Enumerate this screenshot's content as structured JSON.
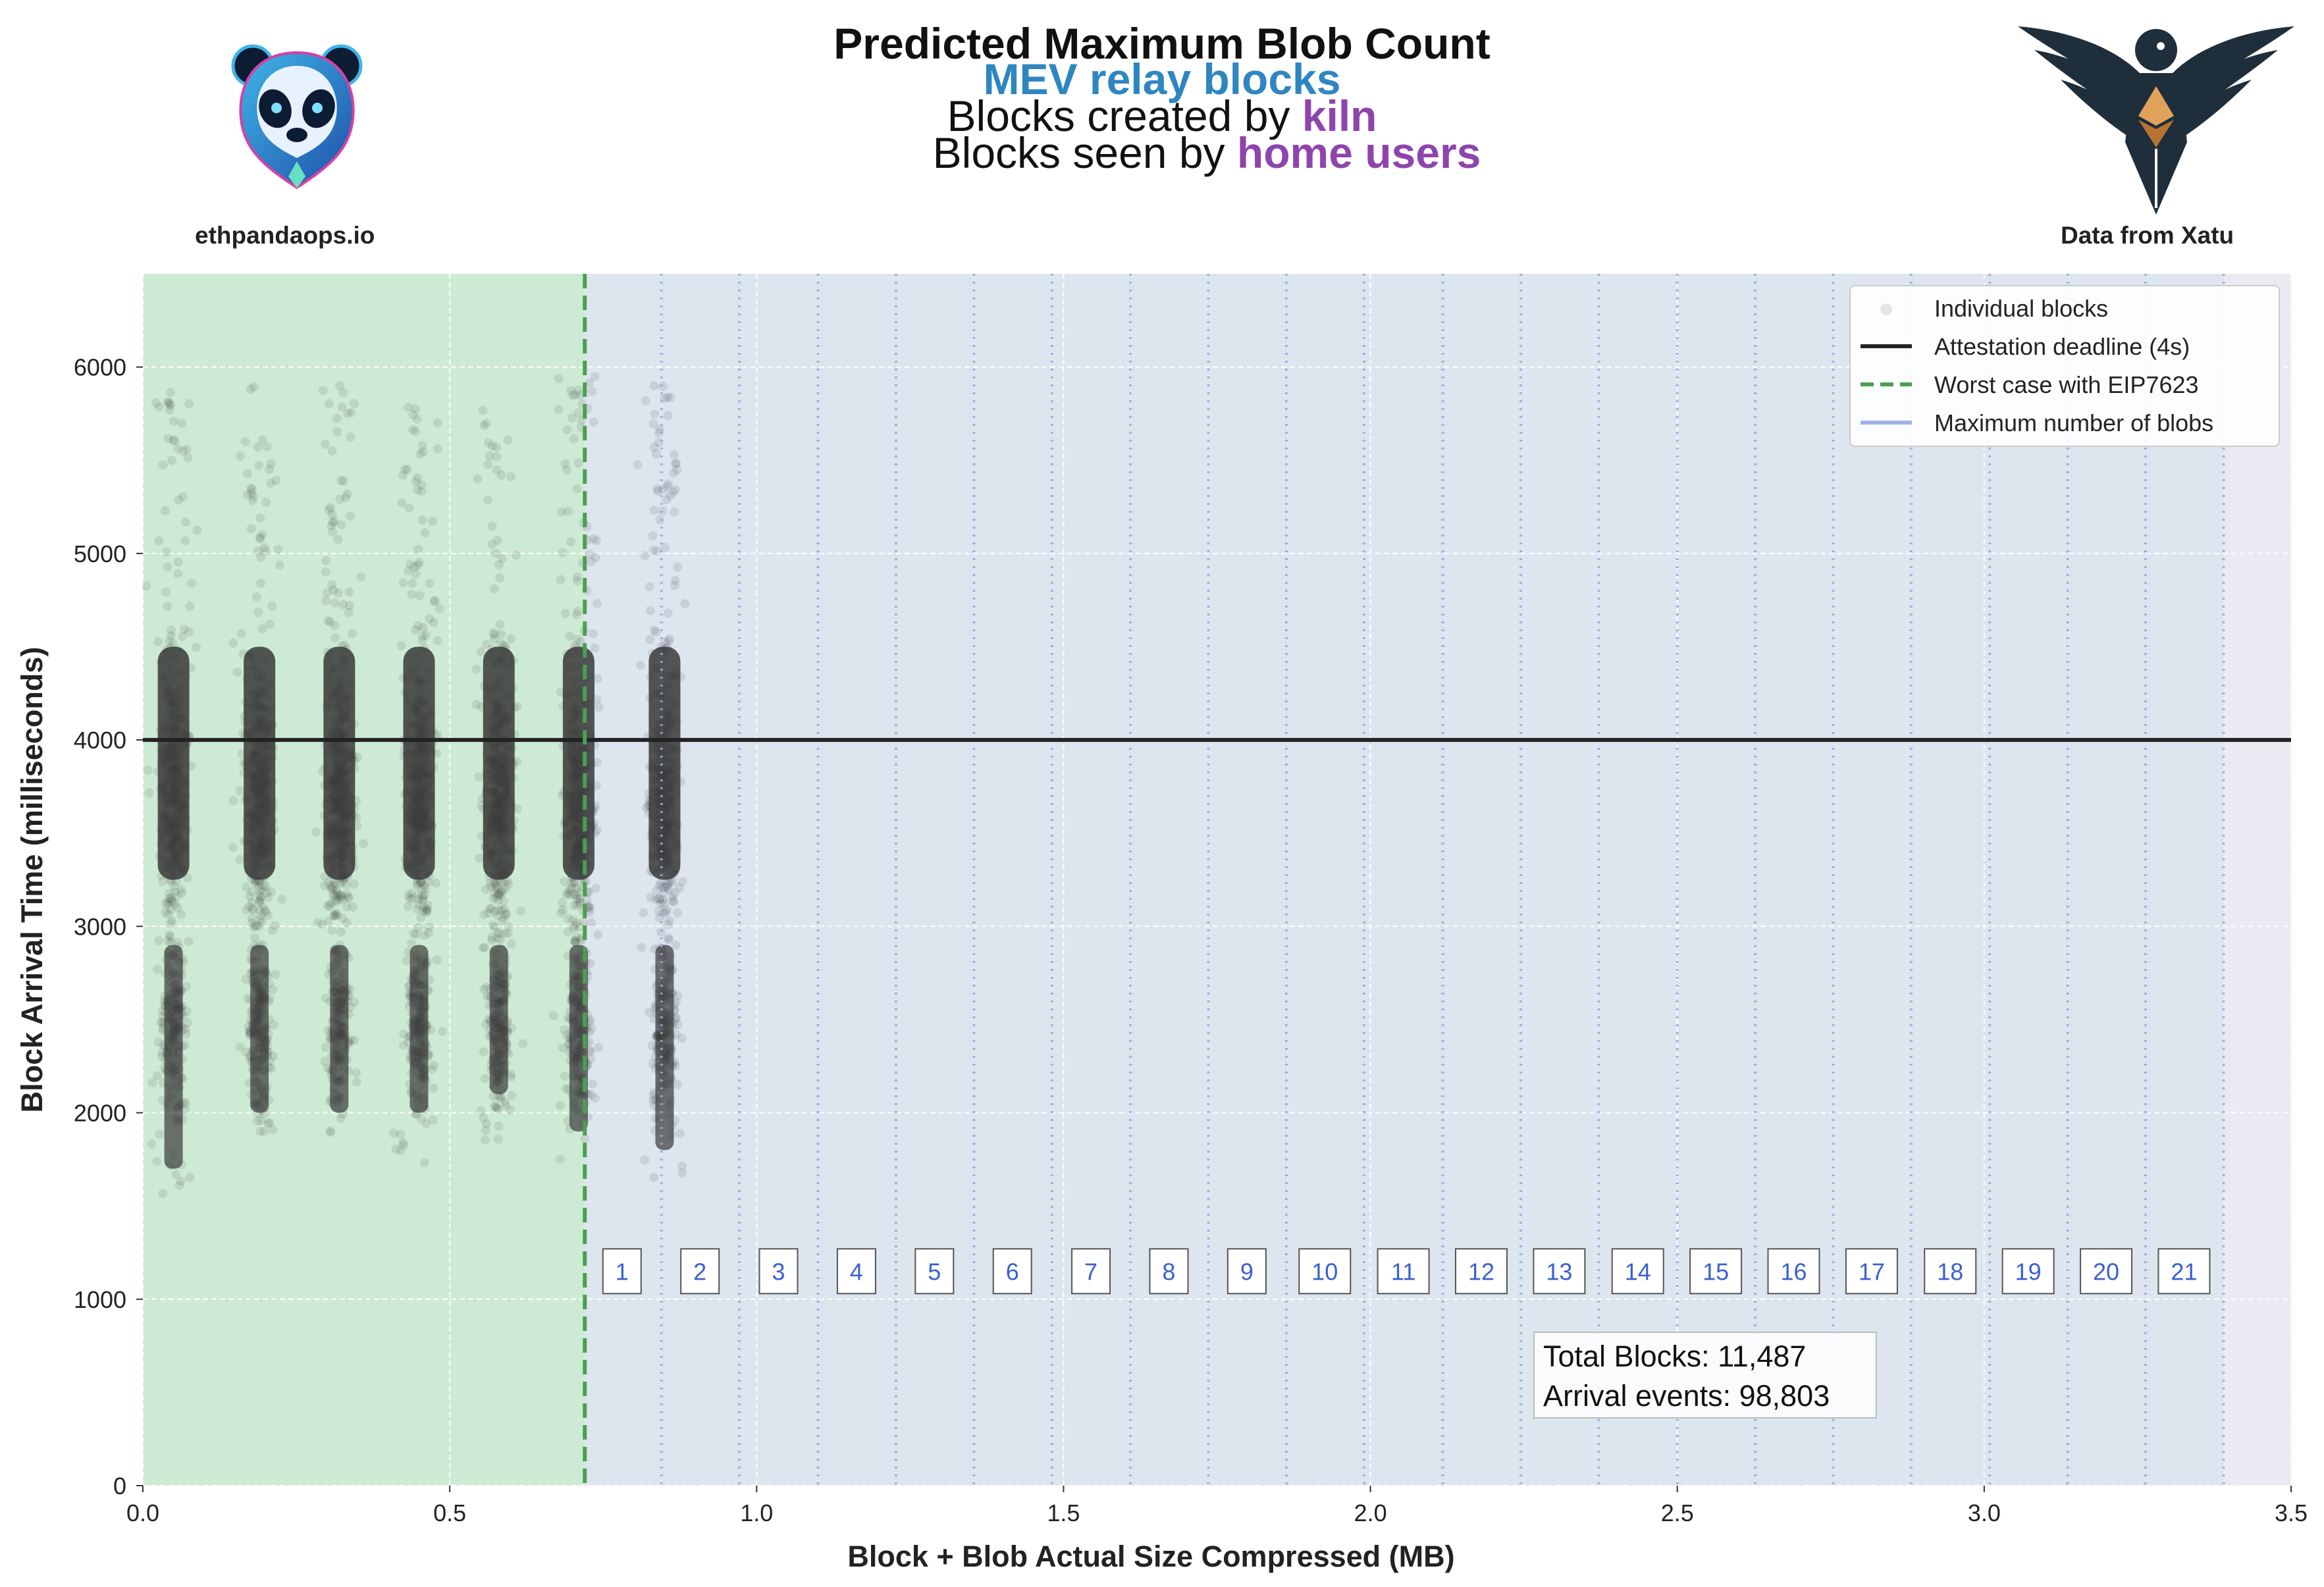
{
  "header": {
    "title": "Predicted Maximum Blob Count",
    "subtitle": "MEV relay blocks",
    "created_prefix": "Blocks created by",
    "created_by": "kiln",
    "seen_prefix": "Blocks seen by",
    "seen_by": "home users",
    "left_brand": "ethpandaops.io",
    "right_brand": "Data from Xatu"
  },
  "colors": {
    "subtitle": "#2e86c1",
    "highlight": "#8e44ad",
    "green_region": "#cdebd4",
    "blue_region": "#dde5ef",
    "plot_bg": "#eaeaf2",
    "points": "#3a3a3a",
    "deadline": "#222222",
    "eip_line": "#4aa050",
    "blob_lines": "#90a8e8",
    "blob_label": "#3b5fcf"
  },
  "icons": {
    "left_logo": "panda-logo-icon",
    "right_logo": "eagle-ethereum-logo-icon"
  },
  "chart_data": {
    "type": "scatter",
    "xlabel": "Block + Blob Actual Size Compressed (MB)",
    "ylabel": "Block Arrival Time (milliseconds)",
    "xlim": [
      0,
      3.5
    ],
    "ylim": [
      0,
      6500
    ],
    "xticks": [
      "0.0",
      "0.5",
      "1.0",
      "1.5",
      "2.0",
      "2.5",
      "3.0",
      "3.5"
    ],
    "xtick_values": [
      0,
      0.5,
      1.0,
      1.5,
      2.0,
      2.5,
      3.0,
      3.5
    ],
    "yticks": [
      "0",
      "1000",
      "2000",
      "3000",
      "4000",
      "5000",
      "6000"
    ],
    "ytick_values": [
      0,
      1000,
      2000,
      3000,
      4000,
      5000,
      6000
    ],
    "grid": true,
    "attestation_deadline_ms": 4000,
    "eip7623_worst_case_mb": 0.72,
    "blob_lines_mb": [
      0.845,
      0.972,
      1.1,
      1.227,
      1.354,
      1.481,
      1.609,
      1.736,
      1.863,
      1.99,
      2.118,
      2.245,
      2.372,
      2.5,
      2.627,
      2.754,
      2.881,
      3.009,
      3.136,
      3.263,
      3.39
    ],
    "blob_labels": [
      "1",
      "2",
      "3",
      "4",
      "5",
      "6",
      "7",
      "8",
      "9",
      "10",
      "11",
      "12",
      "13",
      "14",
      "15",
      "16",
      "17",
      "18",
      "19",
      "20",
      "21"
    ],
    "blob_label_y_ms": 1150,
    "clusters": [
      {
        "x": 0.05,
        "y_min": 1550,
        "y_max": 6000,
        "dense_min": 1700,
        "dense_max": 5000
      },
      {
        "x": 0.19,
        "y_min": 1900,
        "y_max": 5900,
        "dense_min": 2000,
        "dense_max": 4600
      },
      {
        "x": 0.32,
        "y_min": 1800,
        "y_max": 5900,
        "dense_min": 2000,
        "dense_max": 4700
      },
      {
        "x": 0.45,
        "y_min": 1700,
        "y_max": 5900,
        "dense_min": 2000,
        "dense_max": 4600
      },
      {
        "x": 0.58,
        "y_min": 1750,
        "y_max": 5800,
        "dense_min": 2100,
        "dense_max": 4600
      },
      {
        "x": 0.71,
        "y_min": 1750,
        "y_max": 5950,
        "dense_min": 1900,
        "dense_max": 5200
      },
      {
        "x": 0.85,
        "y_min": 1650,
        "y_max": 5900,
        "dense_min": 1800,
        "dense_max": 5400
      }
    ],
    "legend": {
      "placement": "top-right",
      "entries": [
        "Individual blocks",
        "Attestation deadline (4s)",
        "Worst case with EIP7623",
        "Maximum number of blobs"
      ]
    },
    "stats": {
      "total_blocks": "Total Blocks: 11,487",
      "arrival_events": "Arrival events: 98,803"
    }
  }
}
